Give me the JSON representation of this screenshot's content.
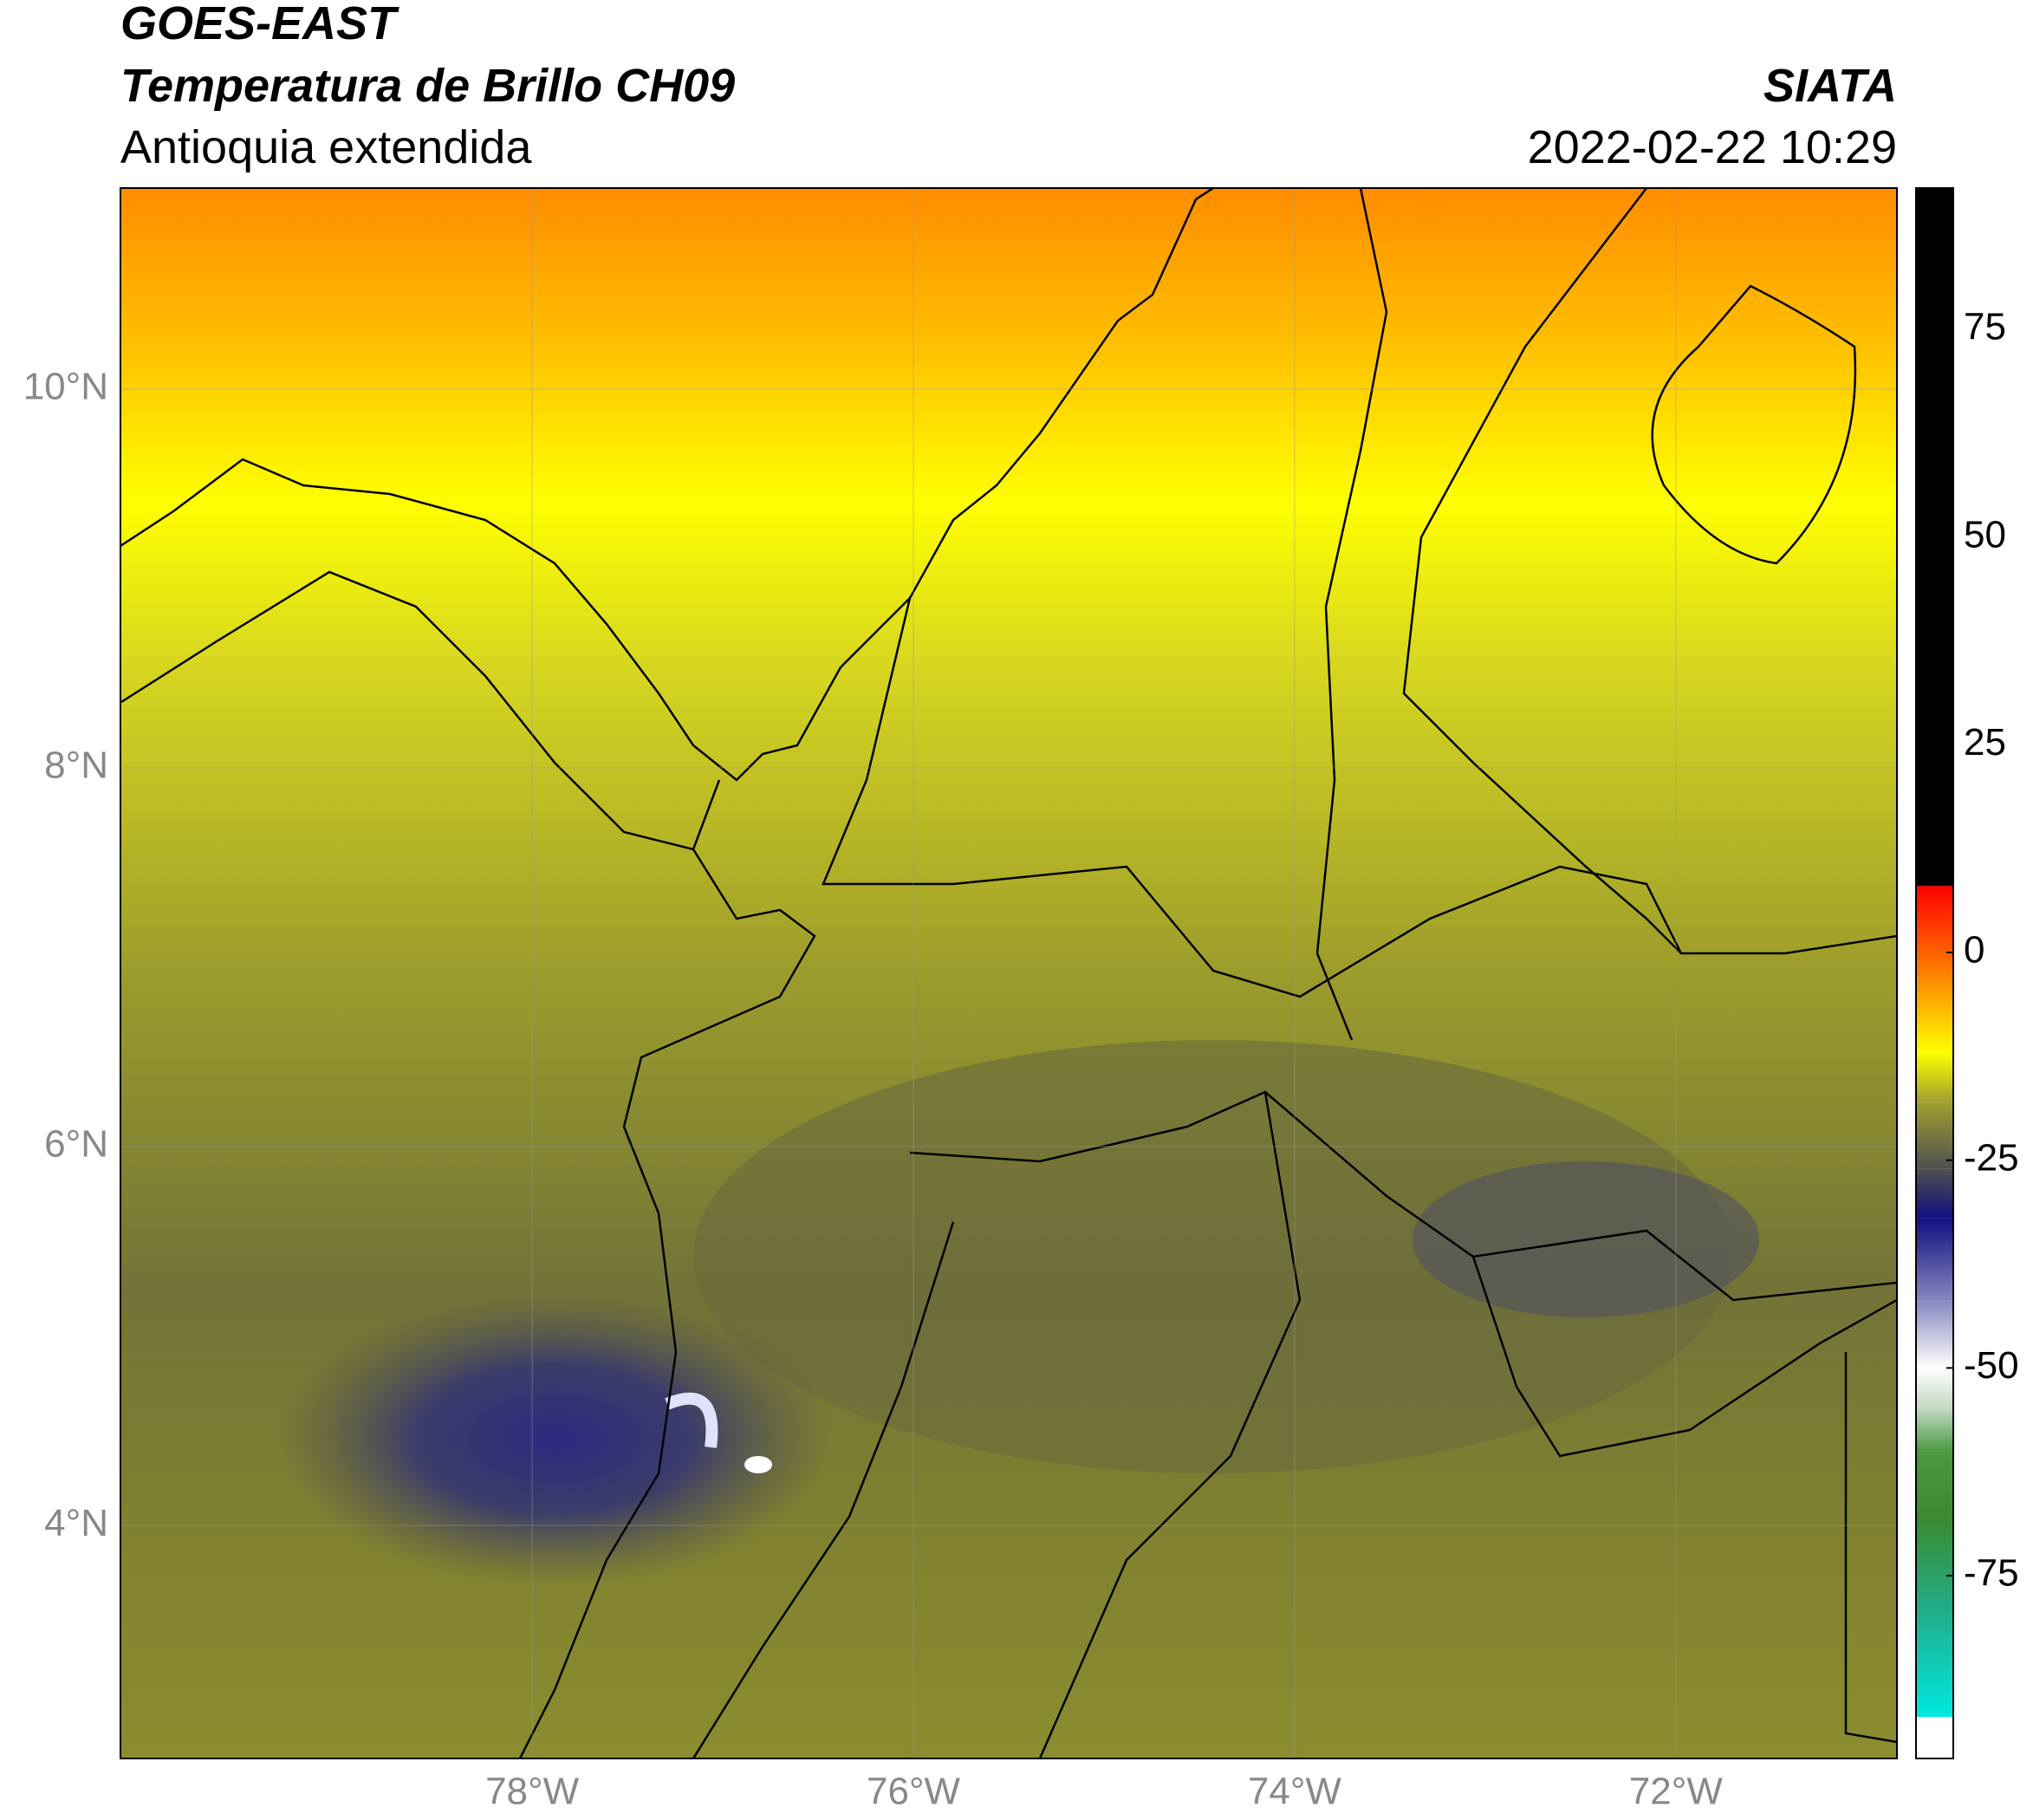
{
  "header": {
    "title": "GOES-EAST",
    "subtitle": "Temperatura de Brillo CH09",
    "region": "Antioquia extendida",
    "source": "SIATA",
    "datetime": "2022-02-22 10:29"
  },
  "map": {
    "lonlim": [
      -80.16,
      -70.84
    ],
    "latlim": [
      2.77,
      11.06
    ],
    "lon_ticks": [
      {
        "value": -78,
        "label": "78°W"
      },
      {
        "value": -76,
        "label": "76°W"
      },
      {
        "value": -74,
        "label": "74°W"
      },
      {
        "value": -72,
        "label": "72°W"
      }
    ],
    "lat_ticks": [
      {
        "value": 4,
        "label": "4°N"
      },
      {
        "value": 6,
        "label": "6°N"
      },
      {
        "value": 8,
        "label": "8°N"
      },
      {
        "value": 10,
        "label": "10°N"
      }
    ]
  },
  "colorbar": {
    "lim": [
      -97,
      92
    ],
    "ticks": [
      -75,
      -50,
      -25,
      0,
      25,
      50,
      75
    ],
    "stops": [
      [
        -97,
        "#ffffff"
      ],
      [
        -92,
        "#ffffff"
      ],
      [
        -92,
        "#00e8e0"
      ],
      [
        -80,
        "#20b090"
      ],
      [
        -68,
        "#3a8a30"
      ],
      [
        -60,
        "#4a9a40"
      ],
      [
        -55,
        "#c0d8c0"
      ],
      [
        -50,
        "#ffffff"
      ],
      [
        -42,
        "#8888c0"
      ],
      [
        -32,
        "#101080"
      ],
      [
        -26,
        "#505050"
      ],
      [
        -18,
        "#a0a030"
      ],
      [
        -12,
        "#ffff00"
      ],
      [
        -5,
        "#ffa000"
      ],
      [
        0,
        "#ff6000"
      ],
      [
        8,
        "#ff0000"
      ],
      [
        8,
        "#000000"
      ],
      [
        92,
        "#000000"
      ]
    ]
  }
}
